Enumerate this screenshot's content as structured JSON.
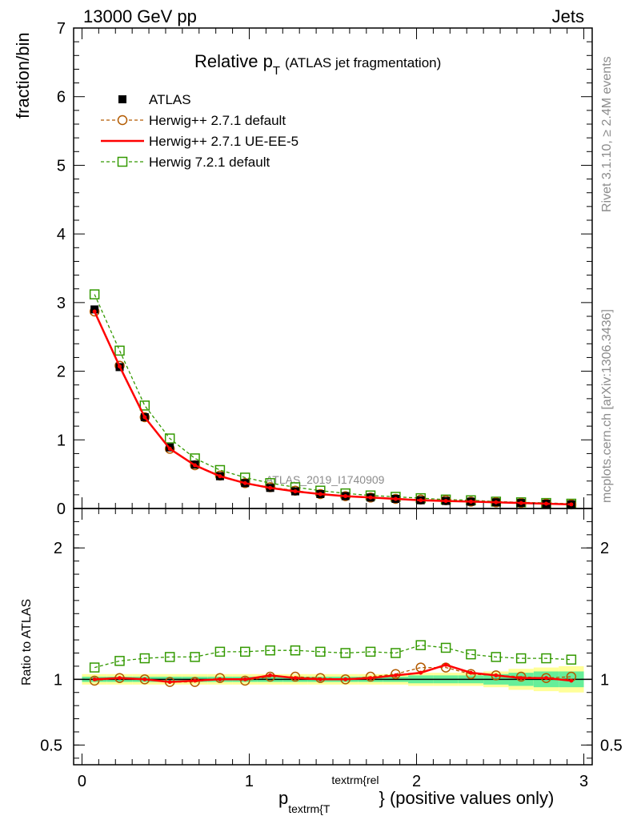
{
  "header": {
    "left": "13000 GeV pp",
    "right": "Jets"
  },
  "side_labels": {
    "rivet": "Rivet 3.1.10, ≥ 2.4M events",
    "mcplots": "mcplots.cern.ch [arXiv:1306.3436]"
  },
  "colors": {
    "atlas": "#000000",
    "herwig_default": "#b35a00",
    "herwig_ueee5": "#ff0000",
    "herwig7": "#339900",
    "band_yellow": "#ffff99",
    "band_green": "#66ee99"
  },
  "chart_data": [
    {
      "type": "scatter",
      "title_main": "Relative p",
      "title_sub": "T",
      "title_note": "(ATLAS jet fragmentation)",
      "ylabel": "fraction/bin",
      "watermark": "ATLAS_2019_I1740909",
      "xlim": [
        -0.05,
        3.05
      ],
      "ylim": [
        0,
        7
      ],
      "y_ticks": [
        "0",
        "1",
        "2",
        "3",
        "4",
        "5",
        "6",
        "7"
      ],
      "x": [
        0.075,
        0.225,
        0.375,
        0.525,
        0.675,
        0.825,
        0.975,
        1.125,
        1.275,
        1.425,
        1.575,
        1.725,
        1.875,
        2.025,
        2.175,
        2.325,
        2.475,
        2.625,
        2.775,
        2.925
      ],
      "series": [
        {
          "name": "ATLAS",
          "style": "data",
          "values": [
            2.9,
            2.06,
            1.33,
            0.89,
            0.64,
            0.47,
            0.37,
            0.3,
            0.25,
            0.21,
            0.18,
            0.16,
            0.14,
            0.12,
            0.11,
            0.1,
            0.09,
            0.08,
            0.07,
            0.06
          ]
        },
        {
          "name": "Herwig++ 2.7.1 default",
          "style": "circle",
          "values": [
            2.87,
            2.08,
            1.33,
            0.87,
            0.63,
            0.48,
            0.37,
            0.31,
            0.26,
            0.21,
            0.18,
            0.16,
            0.14,
            0.13,
            0.12,
            0.1,
            0.09,
            0.08,
            0.07,
            0.06
          ]
        },
        {
          "name": "Herwig++ 2.7.1 UE-EE-5",
          "style": "line",
          "values": [
            2.87,
            2.07,
            1.33,
            0.87,
            0.63,
            0.47,
            0.37,
            0.3,
            0.25,
            0.21,
            0.18,
            0.16,
            0.14,
            0.12,
            0.11,
            0.1,
            0.09,
            0.08,
            0.07,
            0.06
          ]
        },
        {
          "name": "Herwig 7.2.1 default",
          "style": "square",
          "values": [
            3.12,
            2.3,
            1.5,
            1.02,
            0.73,
            0.56,
            0.45,
            0.37,
            0.31,
            0.26,
            0.22,
            0.19,
            0.17,
            0.15,
            0.13,
            0.12,
            0.1,
            0.09,
            0.08,
            0.07
          ]
        }
      ]
    },
    {
      "type": "scatter",
      "ylabel": "Ratio to ATLAS",
      "xlabel_main": "p",
      "xlabel_sub": "textrm{T",
      "xlabel_sup": "textrm{rel",
      "xlabel_rest": "} (positive values only)",
      "xlim": [
        -0.05,
        3.05
      ],
      "ylim": [
        0.35,
        2.3
      ],
      "y_ticks": [
        "0.5",
        "1",
        "2"
      ],
      "x_ticks": [
        "0",
        "1",
        "2",
        "3"
      ],
      "x": [
        0.075,
        0.225,
        0.375,
        0.525,
        0.675,
        0.825,
        0.975,
        1.125,
        1.275,
        1.425,
        1.575,
        1.725,
        1.875,
        2.025,
        2.175,
        2.325,
        2.475,
        2.625,
        2.775,
        2.925
      ],
      "band_yellow": [
        0.04,
        0.04,
        0.04,
        0.04,
        0.04,
        0.04,
        0.04,
        0.04,
        0.04,
        0.04,
        0.04,
        0.04,
        0.04,
        0.05,
        0.05,
        0.05,
        0.06,
        0.08,
        0.09,
        0.1
      ],
      "band_green": [
        0.02,
        0.02,
        0.02,
        0.02,
        0.02,
        0.02,
        0.02,
        0.02,
        0.02,
        0.02,
        0.02,
        0.02,
        0.02,
        0.03,
        0.03,
        0.03,
        0.04,
        0.05,
        0.06,
        0.06
      ],
      "series": [
        {
          "name": "Herwig++ 2.7.1 default",
          "style": "circle",
          "values": [
            0.99,
            1.01,
            1.0,
            0.98,
            0.98,
            1.01,
            0.99,
            1.02,
            1.02,
            1.01,
            1.0,
            1.02,
            1.04,
            1.09,
            1.09,
            1.04,
            1.03,
            1.02,
            1.01,
            1.02
          ]
        },
        {
          "name": "Herwig++ 2.7.1 UE-EE-5",
          "style": "line",
          "values": [
            1.0,
            1.01,
            1.0,
            0.98,
            0.99,
            1.0,
            1.0,
            1.03,
            1.01,
            1.0,
            1.0,
            1.01,
            1.03,
            1.05,
            1.11,
            1.05,
            1.03,
            1.01,
            1.01,
            0.99
          ]
        },
        {
          "name": "Herwig 7.2.1 default",
          "style": "square",
          "values": [
            1.09,
            1.14,
            1.16,
            1.17,
            1.17,
            1.21,
            1.21,
            1.22,
            1.22,
            1.21,
            1.2,
            1.21,
            1.2,
            1.26,
            1.24,
            1.19,
            1.17,
            1.16,
            1.16,
            1.15
          ]
        }
      ]
    }
  ]
}
